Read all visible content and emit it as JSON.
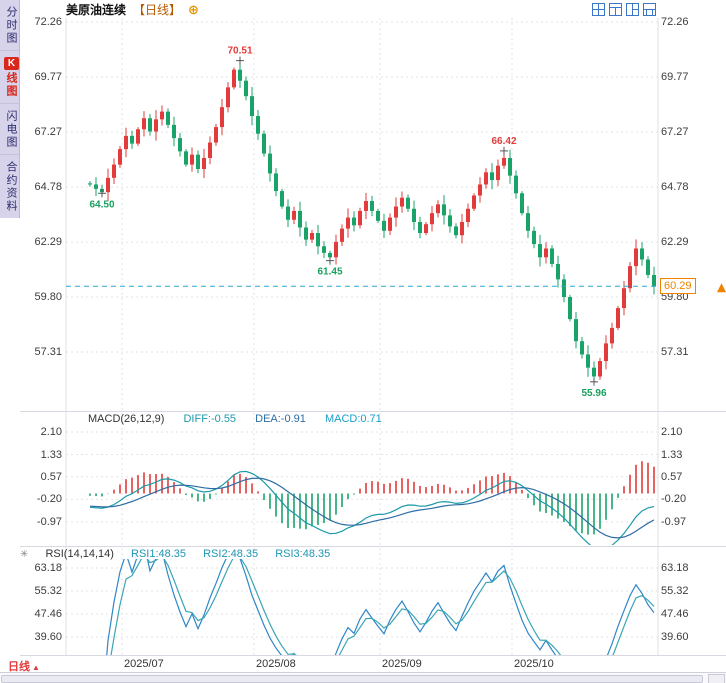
{
  "header": {
    "title": "美原油连续",
    "period_label": "【日线】"
  },
  "icons": {
    "plus": "⊕",
    "settings": "✳",
    "up_triangle": "▲"
  },
  "sidebar": {
    "items": [
      {
        "label": "分时图",
        "active": false
      },
      {
        "label": "K线图",
        "active": true
      },
      {
        "label": "闪电图",
        "active": false
      },
      {
        "label": "合约资料",
        "active": false
      }
    ]
  },
  "main_chart": {
    "current_price_label": "60.29"
  },
  "macd": {
    "name": "MACD(26,12,9)",
    "diff_label": "DIFF:-0.55",
    "dea_label": "DEA:-0.91",
    "macd_label": "MACD:0.71",
    "diff": -0.55,
    "dea": -0.91,
    "macd": 0.71,
    "y_ticks": [
      2.1,
      1.33,
      0.57,
      -0.2,
      -0.97
    ]
  },
  "rsi": {
    "name": "RSI(14,14,14)",
    "rsi1_label": "RSI1:48.35",
    "rsi2_label": "RSI2:48.35",
    "rsi3_label": "RSI3:48.35",
    "rsi1": 48.35,
    "rsi2": 48.35,
    "rsi3": 48.35,
    "y_ticks": [
      63.18,
      55.32,
      47.46,
      39.6
    ]
  },
  "bottom": {
    "period": "日线"
  },
  "chart_data": {
    "type": "candlestick",
    "title": "美原油连续 日线",
    "first_open": 64.95,
    "closes": [
      64.9,
      64.7,
      64.55,
      65.2,
      65.8,
      66.5,
      67.1,
      66.75,
      67.4,
      67.9,
      67.3,
      67.85,
      68.2,
      67.6,
      67.0,
      66.4,
      65.8,
      66.25,
      65.6,
      66.1,
      66.8,
      67.5,
      68.4,
      69.3,
      70.1,
      69.6,
      68.9,
      68.0,
      67.2,
      66.3,
      65.4,
      64.6,
      63.9,
      63.3,
      63.7,
      62.95,
      62.4,
      62.7,
      62.1,
      61.8,
      61.6,
      62.3,
      62.9,
      63.4,
      63.05,
      63.7,
      64.15,
      63.7,
      63.25,
      62.8,
      63.4,
      63.9,
      64.3,
      63.8,
      63.2,
      62.7,
      63.1,
      63.6,
      64.0,
      63.5,
      63.0,
      62.6,
      63.2,
      63.8,
      64.4,
      64.9,
      65.45,
      65.1,
      65.75,
      66.1,
      65.3,
      64.5,
      63.6,
      62.8,
      62.2,
      61.6,
      62.0,
      61.3,
      60.6,
      59.8,
      58.8,
      57.8,
      57.2,
      56.6,
      56.2,
      56.9,
      57.7,
      58.4,
      59.3,
      60.2,
      61.2,
      62.0,
      61.5,
      60.8,
      60.29
    ],
    "y_ticks": [
      72.26,
      69.77,
      67.27,
      64.78,
      62.29,
      59.8,
      57.31
    ],
    "x_ticks": [
      {
        "label": "2025/07",
        "index": 6
      },
      {
        "label": "2025/08",
        "index": 28
      },
      {
        "label": "2025/09",
        "index": 49
      },
      {
        "label": "2025/10",
        "index": 71
      }
    ],
    "annotations": [
      {
        "index": 2,
        "value": 64.5,
        "text": "64.50",
        "position": "below",
        "kind": "low"
      },
      {
        "index": 25,
        "value": 70.51,
        "text": "70.51",
        "position": "above",
        "kind": "high"
      },
      {
        "index": 40,
        "value": 61.45,
        "text": "61.45",
        "position": "below",
        "kind": "low"
      },
      {
        "index": 69,
        "value": 66.42,
        "text": "66.42",
        "position": "above",
        "kind": "high"
      },
      {
        "index": 84,
        "value": 55.96,
        "text": "55.96",
        "position": "below",
        "kind": "low"
      }
    ],
    "current_price": 60.29,
    "ylim": [
      55.5,
      72.5
    ]
  },
  "colors": {
    "up": "#e23b3b",
    "down": "#1aa368",
    "grid": "#e3e3ea",
    "axis_text": "#3c3c3c",
    "price_line": "#2ea8cc",
    "price_tag": "#f08200",
    "diff_line": "#1b9aaa",
    "dea_line": "#2e6da4",
    "rsi_line": "#2f86c8",
    "rsi_line2": "#3aa6b4",
    "annotation_high": "#e23b3b",
    "annotation_low": "#18a05e",
    "icon_blue": "#3a77c8",
    "sidebar_bg": "#d7d3ea",
    "active_red": "#d8281e"
  }
}
